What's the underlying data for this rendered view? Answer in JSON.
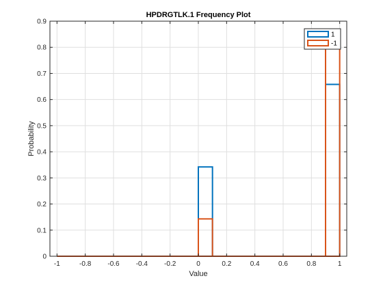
{
  "chart_data": {
    "type": "histogram",
    "title": "HPDRGTLK.1 Frequency Plot",
    "xlabel": "Value",
    "ylabel": "Probability",
    "xlim": [
      -1.05,
      1.05
    ],
    "ylim": [
      0,
      0.9
    ],
    "xticks": [
      -1,
      -0.8,
      -0.6,
      -0.4,
      -0.2,
      0,
      0.2,
      0.4,
      0.6,
      0.8,
      1
    ],
    "xtick_labels": [
      "-1",
      "-0.8",
      "-0.6",
      "-0.4",
      "-0.2",
      "0",
      "0.2",
      "0.4",
      "0.6",
      "0.8",
      "1"
    ],
    "yticks": [
      0,
      0.1,
      0.2,
      0.3,
      0.4,
      0.5,
      0.6,
      0.7,
      0.8,
      0.9
    ],
    "ytick_labels": [
      "0",
      "0.1",
      "0.2",
      "0.3",
      "0.4",
      "0.5",
      "0.6",
      "0.7",
      "0.8",
      "0.9"
    ],
    "grid": true,
    "legend_position": "top-right",
    "series": [
      {
        "name": "1",
        "color": "#0072BD",
        "bins": [
          {
            "x0": -1.0,
            "x1": 0.0,
            "value": 0
          },
          {
            "x0": 0.0,
            "x1": 0.1,
            "value": 0.342
          },
          {
            "x0": 0.1,
            "x1": 0.9,
            "value": 0
          },
          {
            "x0": 0.9,
            "x1": 1.0,
            "value": 0.658
          }
        ]
      },
      {
        "name": "-1",
        "color": "#D95319",
        "bins": [
          {
            "x0": -1.0,
            "x1": 0.0,
            "value": 0
          },
          {
            "x0": 0.0,
            "x1": 0.1,
            "value": 0.143
          },
          {
            "x0": 0.1,
            "x1": 0.9,
            "value": 0
          },
          {
            "x0": 0.9,
            "x1": 1.0,
            "value": 0.857
          }
        ]
      }
    ]
  }
}
